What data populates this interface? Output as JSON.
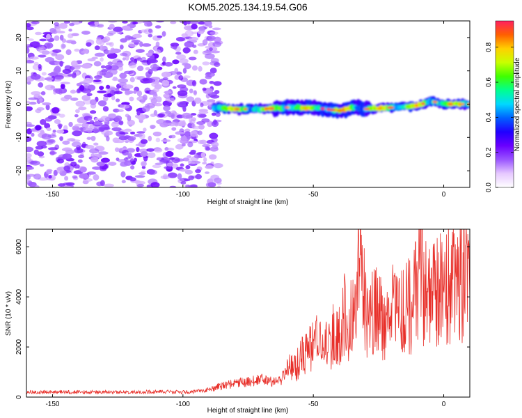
{
  "figure": {
    "title": "KOM5.2025.134.19.54.G06"
  },
  "chart_data": [
    {
      "type": "heatmap",
      "xlabel": "Height of straight line (km)",
      "ylabel": "Frequency (Hz)",
      "xlim": [
        -160,
        10
      ],
      "ylim": [
        -25,
        25
      ],
      "xticks": [
        -150,
        -100,
        -50,
        0
      ],
      "yticks": [
        -20,
        -10,
        0,
        10,
        20
      ],
      "xtick_labels": [
        "-150",
        "-100",
        "-50",
        "0"
      ],
      "ytick_labels": [
        "-20",
        "-10",
        "0",
        "10",
        "20"
      ],
      "colorbar": {
        "label": "Normalized spectral amplitude",
        "range": [
          0,
          0.95
        ],
        "ticks": [
          0.0,
          0.2,
          0.4,
          0.6,
          0.8
        ],
        "tick_labels": [
          "0.0",
          "0.2",
          "0.4",
          "0.6",
          "0.8"
        ],
        "colormap": [
          "#ffffff",
          "#e6c8ff",
          "#9a55ff",
          "#6a00ff",
          "#2000ff",
          "#0060ff",
          "#00d8ff",
          "#00ff90",
          "#40ff00",
          "#c8ff00",
          "#ffd000",
          "#ff6000",
          "#ff2060"
        ]
      },
      "regions": [
        {
          "description": "noise",
          "x_range": [
            -160,
            -88
          ],
          "y_range": [
            -25,
            25
          ],
          "amplitude_range": [
            0.0,
            0.15
          ]
        },
        {
          "description": "signal band",
          "x_range": [
            -88,
            10
          ],
          "center_frequency": -1.0,
          "amplitude_range": [
            0.1,
            0.95
          ]
        }
      ],
      "ridge": {
        "x": [
          -88,
          -80,
          -70,
          -60,
          -50,
          -40,
          -35,
          -30,
          -20,
          -10,
          -5,
          0,
          5,
          10
        ],
        "frequency": [
          -1,
          -1.5,
          -1.5,
          -1,
          -1,
          -2,
          -1,
          -1.5,
          -1,
          -0.5,
          1,
          0,
          0,
          0
        ]
      }
    },
    {
      "type": "line",
      "xlabel": "Height of straight line (km)",
      "ylabel": "SNR (10 * v/v)",
      "xlim": [
        -160,
        10
      ],
      "ylim": [
        0,
        6700
      ],
      "xticks": [
        -150,
        -100,
        -50,
        0
      ],
      "yticks": [
        0,
        2000,
        4000,
        6000
      ],
      "xtick_labels": [
        "-150",
        "-100",
        "-50",
        "0"
      ],
      "ytick_labels": [
        "0",
        "2000",
        "4000",
        "6000"
      ],
      "color": "#e8302a",
      "series": [
        {
          "x": [
            -160,
            -150,
            -140,
            -130,
            -120,
            -110,
            -100,
            -95,
            -90,
            -85,
            -80,
            -75,
            -70,
            -65,
            -62,
            -60,
            -58,
            -55,
            -52,
            -50,
            -48,
            -45,
            -42,
            -40,
            -38,
            -35,
            -33,
            -32,
            -31,
            -30,
            -28,
            -25,
            -22,
            -20,
            -18,
            -15,
            -12,
            -10,
            -9,
            -8,
            -5,
            -2,
            0,
            3,
            5,
            7,
            10
          ],
          "y": [
            200,
            200,
            200,
            200,
            200,
            220,
            200,
            220,
            300,
            450,
            550,
            600,
            700,
            600,
            700,
            1300,
            1100,
            1500,
            1800,
            2000,
            2200,
            2100,
            2500,
            2600,
            3300,
            3000,
            4000,
            6100,
            4200,
            3500,
            3200,
            3400,
            3100,
            3600,
            3300,
            3400,
            3800,
            4600,
            6700,
            4200,
            3800,
            4200,
            4500,
            4600,
            5000,
            4800,
            4300
          ]
        }
      ]
    }
  ]
}
